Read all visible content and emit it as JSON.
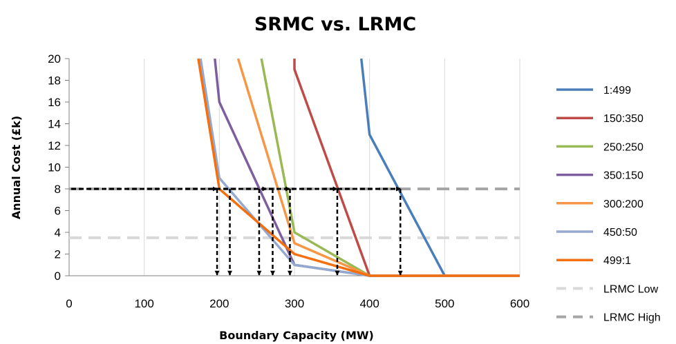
{
  "chart_data": {
    "type": "line",
    "title": "SRMC vs. LRMC",
    "xlabel": "Boundary Capacity (MW)",
    "ylabel": "Annual Cost (£k)",
    "xlim": [
      0,
      600
    ],
    "ylim": [
      0,
      20
    ],
    "x_ticks": [
      "0",
      "100",
      "200",
      "300",
      "400",
      "500",
      "600"
    ],
    "y_ticks": [
      "0",
      "2",
      "4",
      "6",
      "8",
      "10",
      "12",
      "14",
      "16",
      "18",
      "20"
    ],
    "grid": "vertical",
    "legend": "right",
    "series": [
      {
        "name": "1:499",
        "color": "#4A7EBB",
        "points": [
          [
            389,
            20
          ],
          [
            400,
            13
          ],
          [
            500,
            0
          ],
          [
            600,
            0
          ]
        ]
      },
      {
        "name": "150:350",
        "color": "#BE4B48",
        "points": [
          [
            300,
            20
          ],
          [
            300,
            19
          ],
          [
            400,
            0
          ],
          [
            600,
            0
          ]
        ]
      },
      {
        "name": "250:250",
        "color": "#98B954",
        "points": [
          [
            256,
            20
          ],
          [
            300,
            4
          ],
          [
            400,
            0
          ],
          [
            600,
            0
          ]
        ]
      },
      {
        "name": "350:150",
        "color": "#7D5FA0",
        "points": [
          [
            194,
            20
          ],
          [
            200,
            16
          ],
          [
            300,
            1
          ],
          [
            400,
            0
          ],
          [
            600,
            0
          ]
        ]
      },
      {
        "name": "300:200",
        "color": "#F79646",
        "points": [
          [
            225,
            20
          ],
          [
            300,
            3
          ],
          [
            400,
            0
          ],
          [
            600,
            0
          ]
        ]
      },
      {
        "name": "450:50",
        "color": "#93A9CF",
        "points": [
          [
            175,
            20
          ],
          [
            200,
            9
          ],
          [
            300,
            1
          ],
          [
            400,
            0
          ],
          [
            600,
            0
          ]
        ]
      },
      {
        "name": "499:1",
        "color": "#F36F0F",
        "points": [
          [
            172,
            20
          ],
          [
            200,
            8
          ],
          [
            300,
            2
          ],
          [
            400,
            0
          ],
          [
            600,
            0
          ]
        ]
      },
      {
        "name": "LRMC Low",
        "color": "#D9D9D9",
        "dashed": true,
        "points": [
          [
            0,
            3.5
          ],
          [
            600,
            3.5
          ]
        ]
      },
      {
        "name": "LRMC High",
        "color": "#A6A6A6",
        "dashed": true,
        "points": [
          [
            0,
            8
          ],
          [
            600,
            8
          ]
        ]
      }
    ],
    "annotations": {
      "level": 8,
      "arrow_color": "#000000",
      "horizontal_arrows_to": [
        197,
        263,
        294,
        357,
        441
      ],
      "vertical_arrows_at": [
        197,
        214,
        253,
        271,
        294,
        357,
        441
      ]
    }
  }
}
